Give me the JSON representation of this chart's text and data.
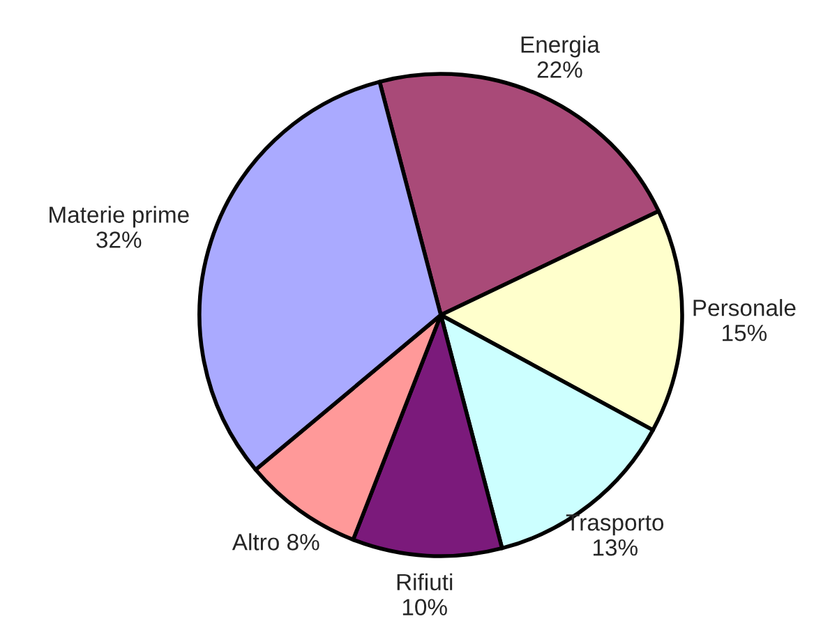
{
  "chart_data": {
    "type": "pie",
    "categories": [
      "Energia",
      "Personale",
      "Trasporto",
      "Rifiuti",
      "Altro",
      "Materie prime"
    ],
    "values": [
      22,
      15,
      13,
      10,
      8,
      32
    ],
    "colors": [
      "#a94a78",
      "#ffffcc",
      "#ccffff",
      "#7b1a7b",
      "#ff9999",
      "#aaaaff"
    ],
    "value_labels": [
      "22%",
      "15%",
      "13%",
      "10%",
      "8%",
      "32%"
    ],
    "legend": false
  }
}
